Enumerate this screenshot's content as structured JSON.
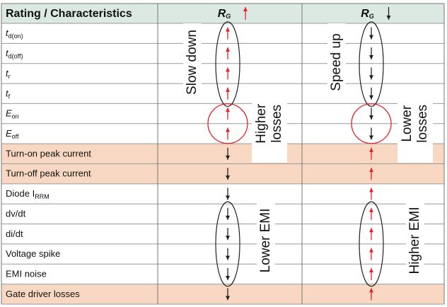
{
  "table": {
    "header": [
      {
        "label": "Rating / Characteristics"
      },
      {
        "label": "R",
        "sub": "G"
      },
      {
        "label": "R",
        "sub": "G"
      }
    ],
    "rows": [
      {
        "label": "t",
        "sub": "d(on)",
        "italic": true
      },
      {
        "label": "t",
        "sub": "d(off)",
        "italic": true
      },
      {
        "label": "t",
        "sub": "r",
        "italic": true
      },
      {
        "label": "t",
        "sub": "f",
        "italic": true
      },
      {
        "label": "E",
        "sub": "on",
        "italic": true
      },
      {
        "label": "E",
        "sub": "off",
        "italic": true
      },
      {
        "label": "Turn-on peak current",
        "highlight": true
      },
      {
        "label": "Turn-off peak current",
        "highlight": true
      },
      {
        "label": "Diode I",
        "sub": "RRM"
      },
      {
        "label": "dv/dt"
      },
      {
        "label": "di/dt"
      },
      {
        "label": "Voltage spike"
      },
      {
        "label": "EMI noise"
      },
      {
        "label": "Gate driver losses",
        "highlight": true
      }
    ]
  },
  "annotations": {
    "increase": [
      {
        "lines": [
          "Slow down"
        ]
      },
      {
        "lines": [
          "Higher",
          "losses"
        ]
      },
      {
        "lines": [
          "Lower EMI"
        ]
      }
    ],
    "decrease": [
      {
        "lines": [
          "Speed up"
        ]
      },
      {
        "lines": [
          "Lower",
          "losses"
        ]
      },
      {
        "lines": [
          "Higher EMI"
        ]
      }
    ]
  }
}
